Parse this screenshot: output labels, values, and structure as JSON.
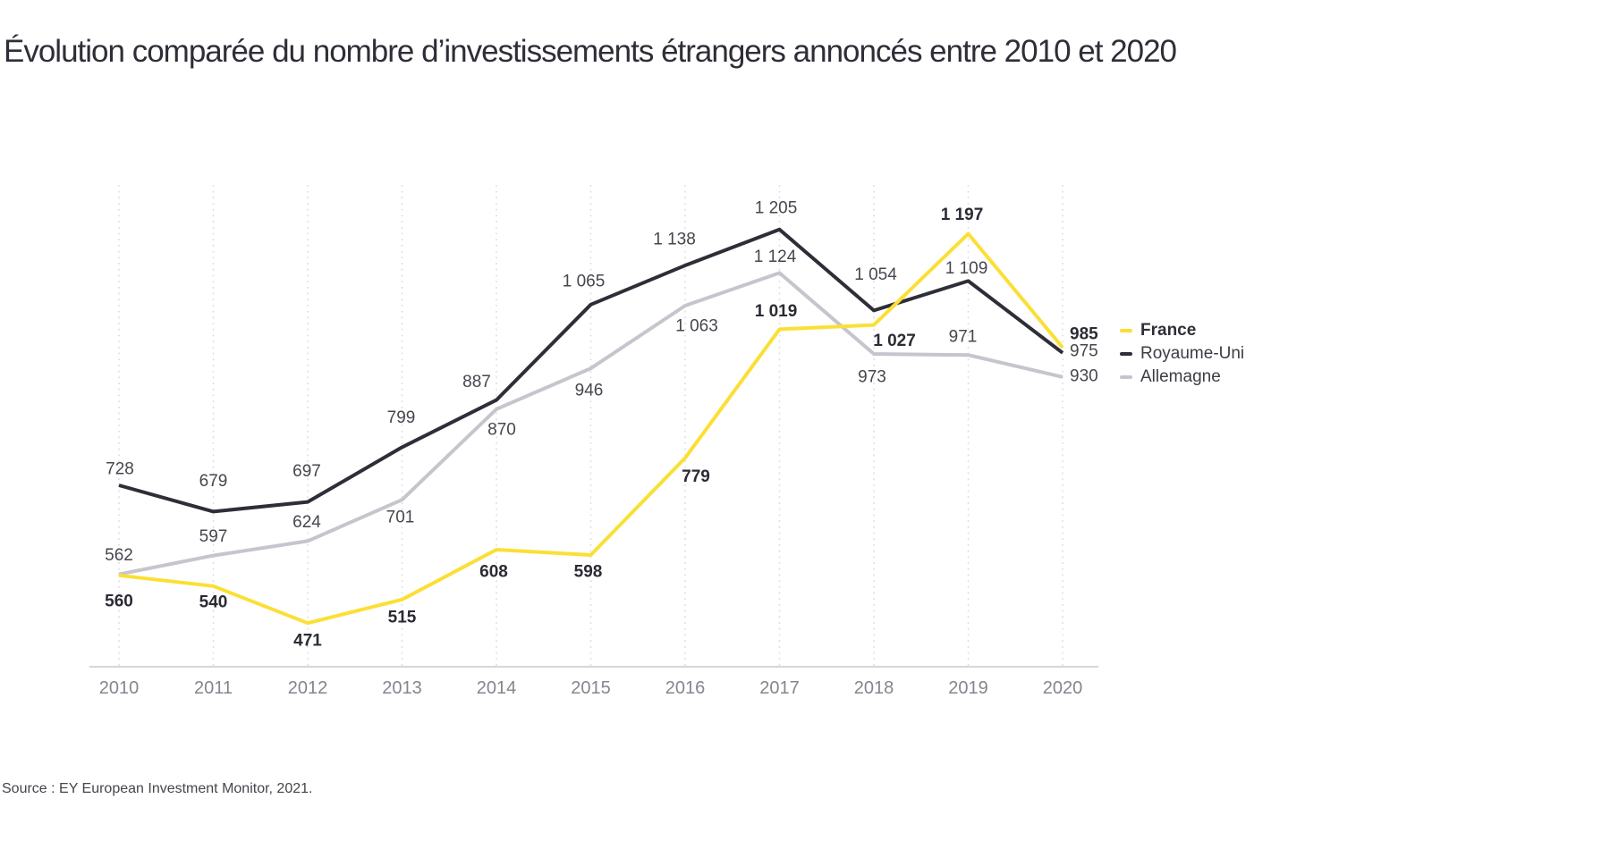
{
  "page": {
    "title": "Évolution comparée du nombre d’investissements étrangers annoncés entre 2010 et 2020",
    "source": "Source : EY European Investment Monitor, 2021."
  },
  "chart_data": {
    "type": "line",
    "title": "Évolution comparée du nombre d’investissements étrangers annoncés entre 2010 et 2020",
    "categories": [
      "2010",
      "2011",
      "2012",
      "2013",
      "2014",
      "2015",
      "2016",
      "2017",
      "2018",
      "2019",
      "2020"
    ],
    "series": [
      {
        "name": "France",
        "color": "#FBDF35",
        "emphasis": true,
        "values": [
          560,
          540,
          471,
          515,
          608,
          598,
          779,
          1019,
          1027,
          1197,
          985
        ],
        "labels": [
          "560",
          "540",
          "471",
          "515",
          "608",
          "598",
          "779",
          "1 019",
          "1 027",
          "1 197",
          "985"
        ]
      },
      {
        "name": "Royaume-Uni",
        "color": "#2E2E38",
        "emphasis": false,
        "values": [
          728,
          679,
          697,
          799,
          887,
          1065,
          1138,
          1205,
          1054,
          1109,
          975
        ],
        "labels": [
          "728",
          "679",
          "697",
          "799",
          "887",
          "1 065",
          "1 138",
          "1 205",
          "1 054",
          "1 109",
          "975"
        ]
      },
      {
        "name": "Allemagne",
        "color": "#C5C5CD",
        "emphasis": false,
        "values": [
          562,
          597,
          624,
          701,
          870,
          946,
          1063,
          1124,
          973,
          971,
          930
        ],
        "labels": [
          "562",
          "597",
          "624",
          "701",
          "870",
          "946",
          "1 063",
          "1 124",
          "973",
          "971",
          "930"
        ]
      }
    ],
    "xlabel": "",
    "ylabel": "",
    "y_axis_visible": false,
    "grid": "vertical-dotted",
    "legend_position": "right",
    "source": "Source : EY European Investment Monitor, 2021."
  },
  "colors": {
    "title_text": "#2E2E38",
    "gridline": "#DBDBDF",
    "axis_line": "#C9C9CF",
    "year_label": "#85858F",
    "data_label": "#46464F",
    "data_label_emphasis": "#2B2B34",
    "source_text": "#45454D",
    "background": "#FFFFFF"
  }
}
